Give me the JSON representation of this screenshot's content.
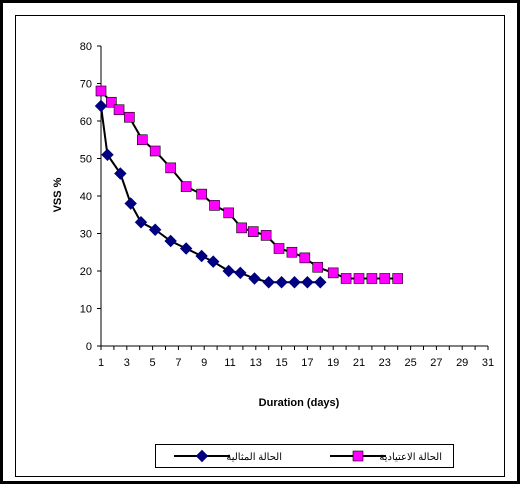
{
  "chart_data": {
    "type": "line",
    "xlabel": "Duration (days)",
    "ylabel": "VSS %",
    "xlim": [
      1,
      31
    ],
    "ylim": [
      0,
      80
    ],
    "x_ticks": [
      "1",
      "3",
      "5",
      "7",
      "9",
      "11",
      "13",
      "15",
      "17",
      "19",
      "21",
      "23",
      "25",
      "27",
      "29",
      "31"
    ],
    "y_ticks": [
      "0",
      "10",
      "20",
      "30",
      "40",
      "50",
      "60",
      "70",
      "80"
    ],
    "grid": false,
    "legend_position": "bottom",
    "series": [
      {
        "name": "الحالة المثالية",
        "marker": "diamond",
        "color": "#000080",
        "line_color": "#000000",
        "x": [
          1,
          1.5,
          2.5,
          3.3,
          4.1,
          5.2,
          6.4,
          7.6,
          8.8,
          9.7,
          10.9,
          11.8,
          12.9,
          14,
          15,
          16,
          17,
          18
        ],
        "y": [
          64,
          51,
          46,
          38,
          33,
          31,
          28,
          26,
          24,
          22.5,
          20,
          19.5,
          18,
          17,
          17,
          17,
          17,
          17
        ]
      },
      {
        "name": "الحالة الاعتيادية",
        "marker": "square",
        "color": "#ff00ff",
        "line_color": "#000000",
        "x": [
          1,
          1.8,
          2.4,
          3.2,
          4.2,
          5.2,
          6.4,
          7.6,
          8.8,
          9.8,
          10.9,
          11.9,
          12.8,
          13.8,
          14.8,
          15.8,
          16.8,
          17.8,
          19,
          20,
          21,
          22,
          23,
          24
        ],
        "y": [
          68,
          65,
          63,
          61,
          55,
          52,
          47.5,
          42.5,
          40.5,
          37.5,
          35.5,
          31.5,
          30.5,
          29.5,
          26,
          25,
          23.5,
          21,
          19.5,
          18,
          18,
          18,
          18,
          18
        ]
      }
    ]
  }
}
